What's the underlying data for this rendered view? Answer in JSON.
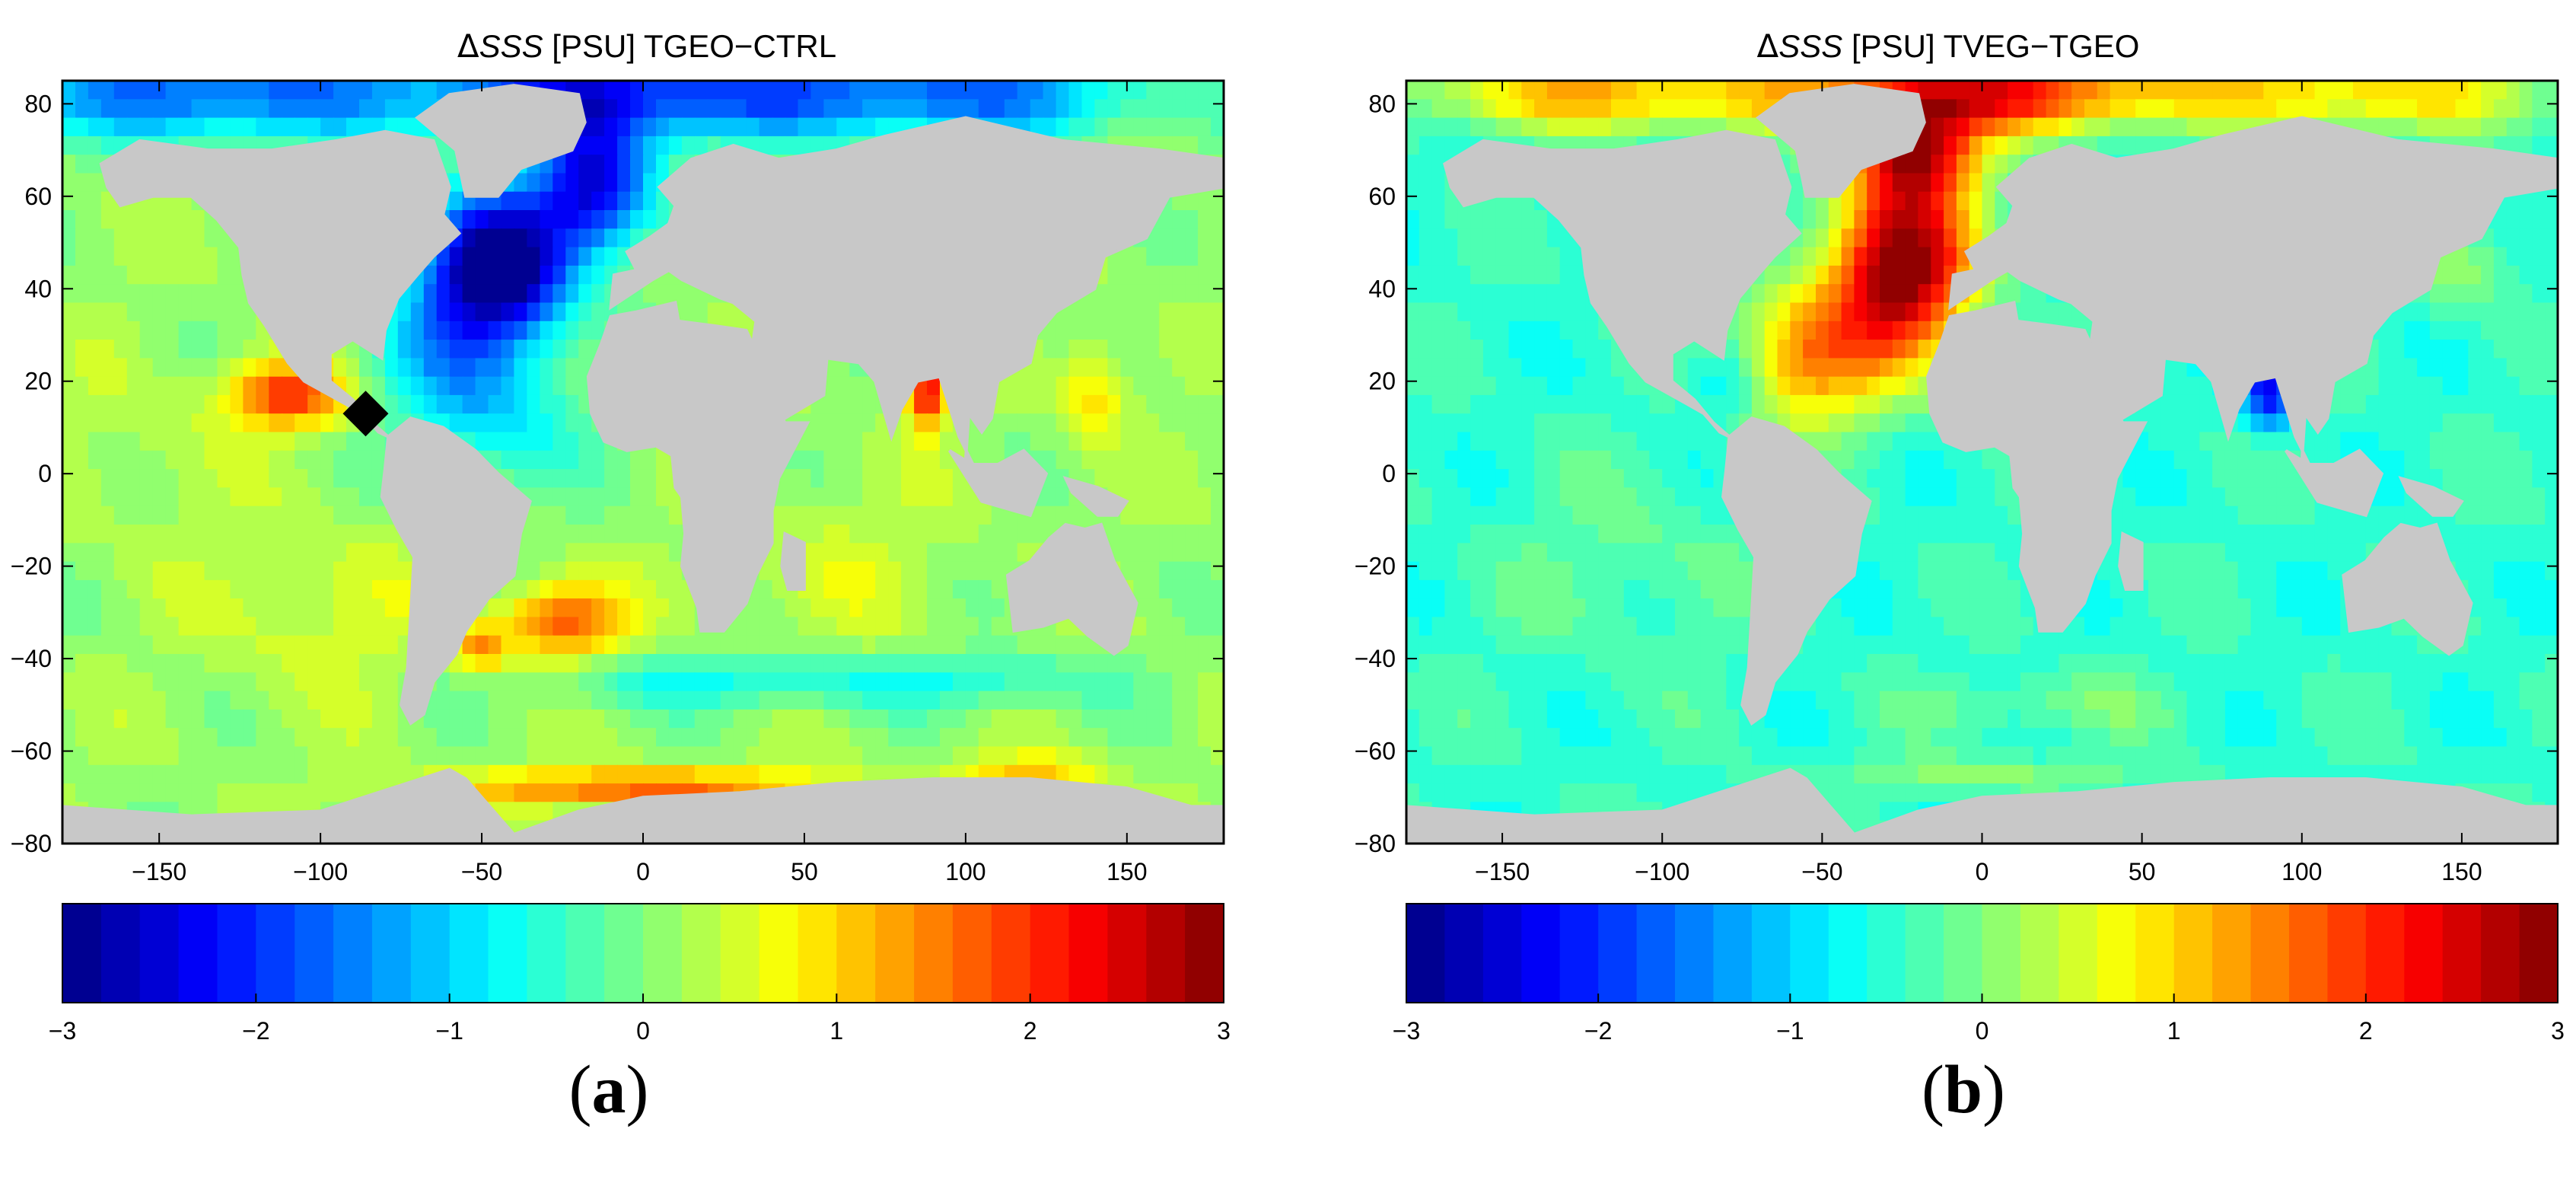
{
  "panels": [
    {
      "title_prefix": "Δ",
      "title_var": "SSS",
      "title_rest": " [PSU] TGEO−CTRL",
      "label": "a",
      "pattern": "tgeo_ctrl"
    },
    {
      "title_prefix": "Δ",
      "title_var": "SSS",
      "title_rest": " [PSU] TVEG−TGEO",
      "label": "b",
      "pattern": "tveg_tgeo"
    }
  ],
  "chart_data": [
    {
      "type": "heatmap",
      "title": "ΔSSS [PSU] TGEO−CTRL",
      "xlabel": "",
      "ylabel": "",
      "xlim": [
        -180,
        180
      ],
      "ylim": [
        -80,
        85
      ],
      "x_ticks": [
        -150,
        -100,
        -50,
        0,
        50,
        100,
        150
      ],
      "y_ticks": [
        -80,
        -60,
        -40,
        -20,
        0,
        20,
        40,
        60,
        80
      ],
      "colorbar": {
        "range": [
          -3,
          3
        ],
        "ticks": [
          -3,
          -2,
          -1,
          0,
          1,
          2,
          3
        ],
        "steps": 30,
        "colormap": "jet"
      },
      "land_color": "#c8c8c8",
      "features": [
        {
          "region": "North Atlantic / Labrador Sea",
          "value": -3.0
        },
        {
          "region": "Arctic",
          "value": -2.4
        },
        {
          "region": "Eastern tropical Pacific",
          "value": 1.8
        },
        {
          "region": "South Atlantic",
          "value": 1.6
        },
        {
          "region": "Bay of Bengal",
          "value": 1.9
        },
        {
          "region": "Open ocean background",
          "value": 0.2
        }
      ],
      "marker": {
        "shape": "diamond",
        "lon": -86,
        "lat": 13,
        "color": "#000000"
      }
    },
    {
      "type": "heatmap",
      "title": "ΔSSS [PSU] TVEG−TGEO",
      "xlabel": "",
      "ylabel": "",
      "xlim": [
        -180,
        180
      ],
      "ylim": [
        -80,
        85
      ],
      "x_ticks": [
        -150,
        -100,
        -50,
        0,
        50,
        100,
        150
      ],
      "y_ticks": [
        -80,
        -60,
        -40,
        -20,
        0,
        20,
        40,
        60,
        80
      ],
      "colorbar": {
        "range": [
          -3,
          3
        ],
        "ticks": [
          -3,
          -2,
          -1,
          0,
          1,
          2,
          3
        ],
        "steps": 30,
        "colormap": "jet"
      },
      "land_color": "#c8c8c8",
      "features": [
        {
          "region": "North Atlantic",
          "value": 2.9
        },
        {
          "region": "Arctic",
          "value": 2.2
        },
        {
          "region": "Subtropical North Atlantic",
          "value": 1.3
        },
        {
          "region": "Bay of Bengal",
          "value": -1.8
        },
        {
          "region": "Open ocean background",
          "value": -0.4
        }
      ]
    }
  ]
}
